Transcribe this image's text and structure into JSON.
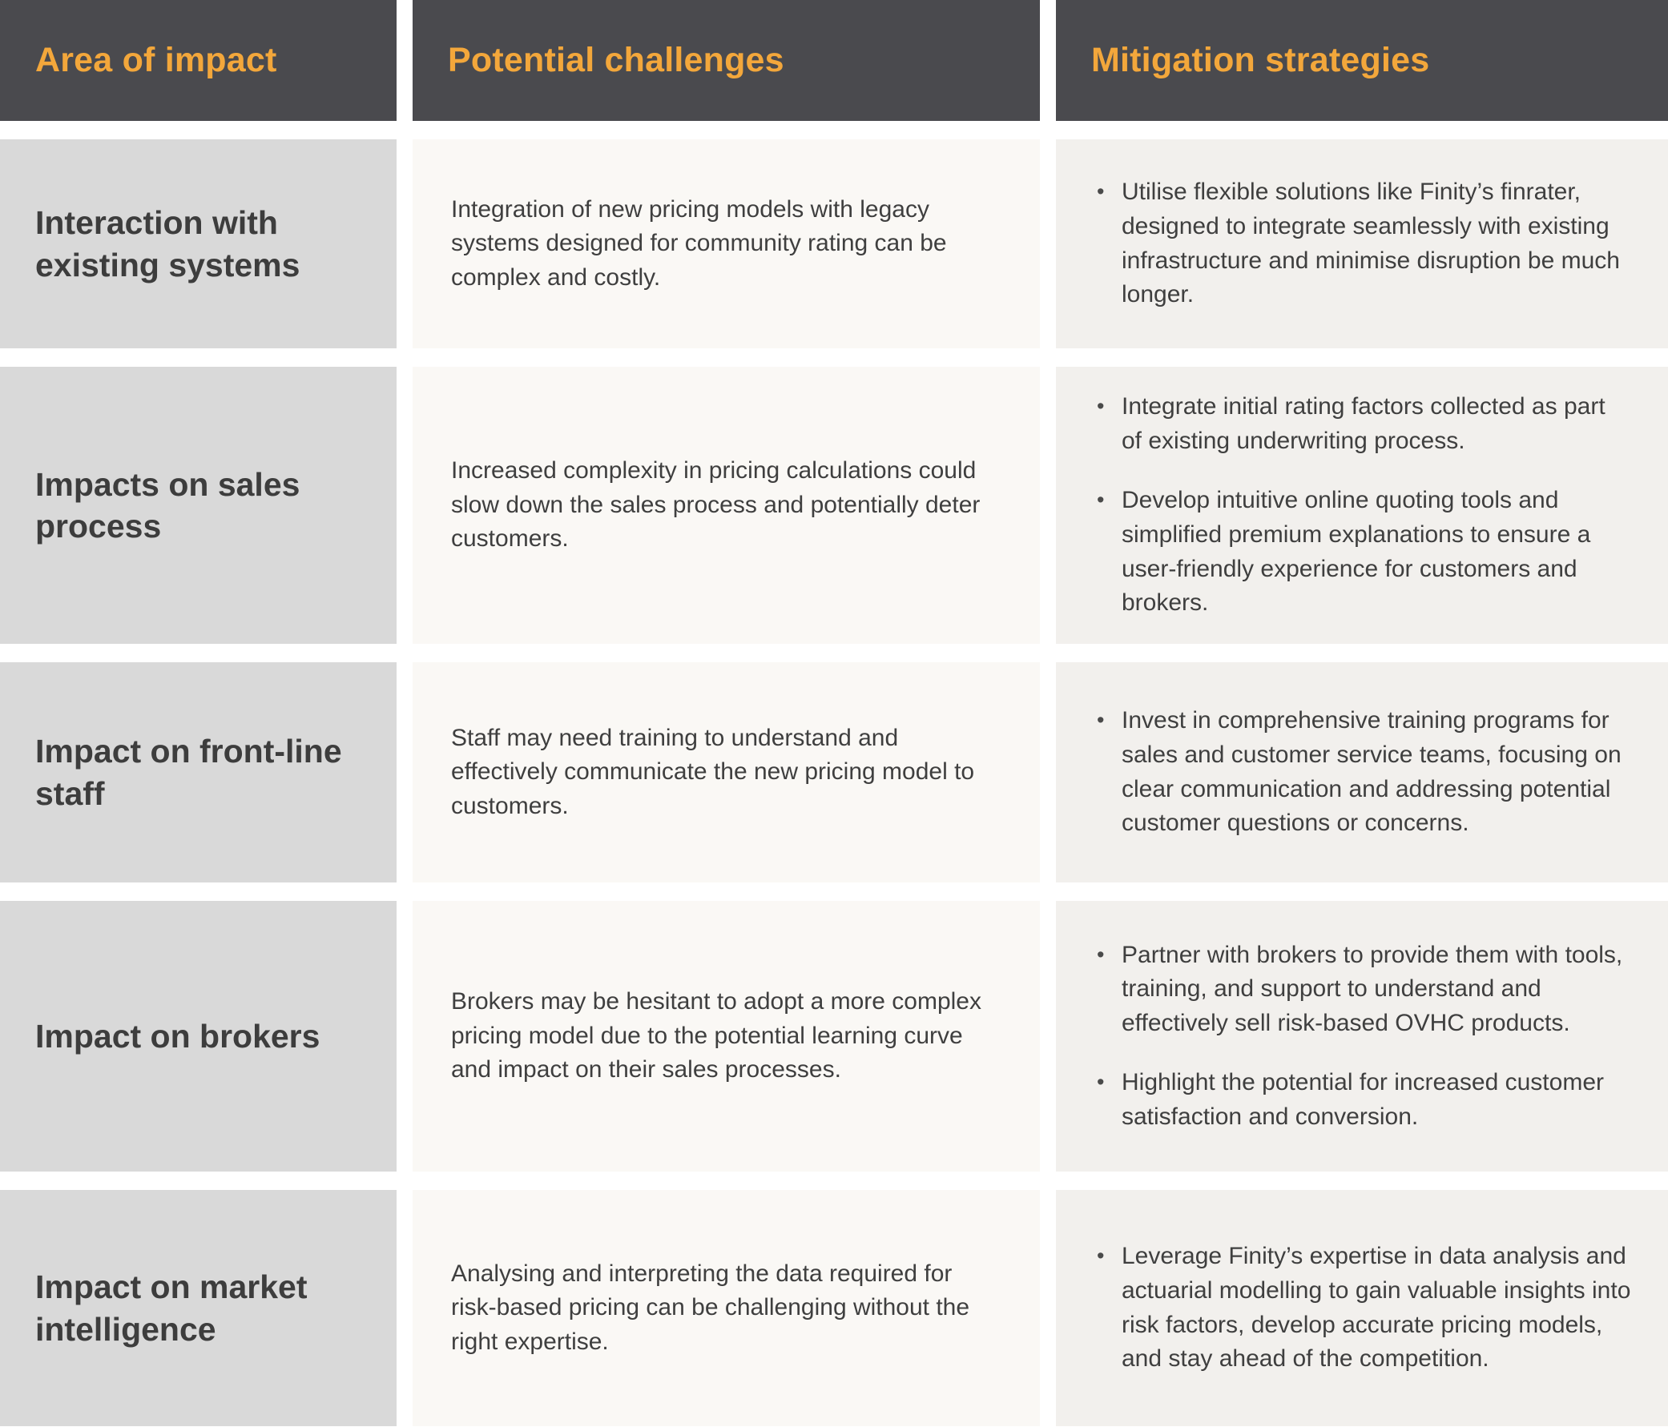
{
  "colors": {
    "header_bg": "#4A4A4E",
    "header_text": "#F3A73B",
    "area_cell_bg": "#D9D9D9",
    "challenge_cell_bg": "#FAF8F5",
    "mitigation_cell_bg": "#F2F0ED",
    "body_text": "#3E3E3E"
  },
  "columns": {
    "area": "Area of impact",
    "challenges": "Potential challenges",
    "mitigations": "Mitigation strategies"
  },
  "rows": [
    {
      "area": "Interaction with existing systems",
      "challenge": "Integration of new pricing models with legacy systems designed for community rating can be complex and costly.",
      "mitigations": [
        "Utilise flexible solutions like Finity’s finrater, designed to integrate seamlessly with existing infrastructure and minimise disruption be much longer."
      ]
    },
    {
      "area": "Impacts on sales process",
      "challenge": "Increased complexity in pricing calculations could slow down the sales process and potentially deter customers.",
      "mitigations": [
        "Integrate initial rating factors collected as part of existing underwriting process.",
        "Develop intuitive online quoting tools and simplified premium explanations to ensure a user-friendly experience for customers and brokers."
      ]
    },
    {
      "area": "Impact on front-line staff",
      "challenge": "Staff may need training to understand and effectively communicate the new pricing model to customers.",
      "mitigations": [
        "Invest in comprehensive training programs for sales and customer service teams, focusing on clear communication and addressing potential customer questions or concerns."
      ]
    },
    {
      "area": "Impact on brokers",
      "challenge": "Brokers may be hesitant to adopt a more complex pricing model due to the potential learning curve and impact on their sales processes.",
      "mitigations": [
        "Partner with brokers to provide them with tools, training, and support to understand and effectively sell risk-based OVHC products.",
        "Highlight the potential for increased customer satisfaction and conversion."
      ]
    },
    {
      "area": "Impact on market intelligence",
      "challenge": "Analysing and interpreting the data required for risk-based pricing can be challenging without the right expertise.",
      "mitigations": [
        "Leverage Finity’s expertise in data analysis and actuarial modelling to gain valuable insights into risk factors, develop accurate pricing models, and stay ahead of the competition."
      ]
    }
  ]
}
